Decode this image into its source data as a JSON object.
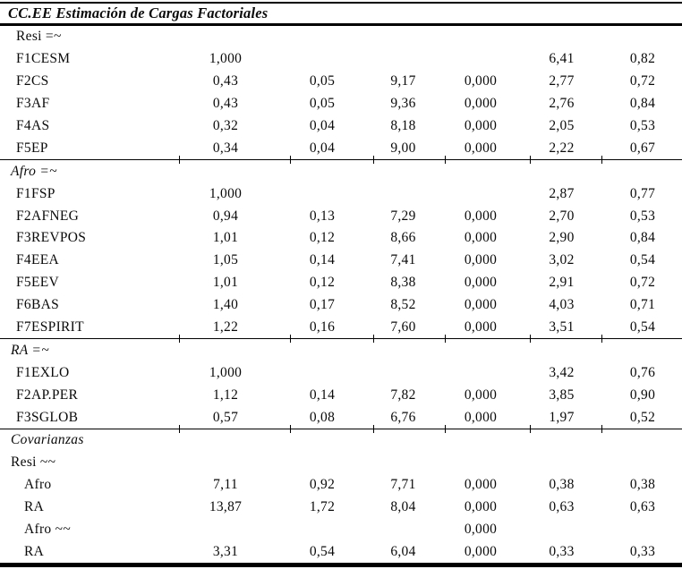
{
  "title": "CC.EE Estimación de Cargas Factoriales",
  "table": {
    "rows": [
      {
        "label": "Resi =~",
        "italic": false,
        "indent": 1,
        "values": [
          "",
          "",
          "",
          "",
          "",
          ""
        ]
      },
      {
        "label": "F1CESM",
        "italic": false,
        "indent": 1,
        "values": [
          "1,000",
          "",
          "",
          "",
          "6,41",
          "0,82"
        ]
      },
      {
        "label": "F2CS",
        "italic": false,
        "indent": 1,
        "values": [
          "0,43",
          "0,05",
          "9,17",
          "0,000",
          "2,77",
          "0,72"
        ]
      },
      {
        "label": "F3AF",
        "italic": false,
        "indent": 1,
        "values": [
          "0,43",
          "0,05",
          "9,36",
          "0,000",
          "2,76",
          "0,84"
        ]
      },
      {
        "label": "F4AS",
        "italic": false,
        "indent": 1,
        "values": [
          "0,32",
          "0,04",
          "8,18",
          "0,000",
          "2,05",
          "0,53"
        ]
      },
      {
        "label": "F5EP",
        "italic": false,
        "indent": 1,
        "values": [
          "0,34",
          "0,04",
          "9,00",
          "0,000",
          "2,22",
          "0,67"
        ],
        "rule_after": true
      },
      {
        "label": "Afro =~",
        "italic": true,
        "indent": 0,
        "values": [
          "",
          "",
          "",
          "",
          "",
          ""
        ]
      },
      {
        "label": "F1FSP",
        "italic": false,
        "indent": 1,
        "values": [
          "1,000",
          "",
          "",
          "",
          "2,87",
          "0,77"
        ]
      },
      {
        "label": "F2AFNEG",
        "italic": false,
        "indent": 1,
        "values": [
          "0,94",
          "0,13",
          "7,29",
          "0,000",
          "2,70",
          "0,53"
        ]
      },
      {
        "label": "F3REVPOS",
        "italic": false,
        "indent": 1,
        "values": [
          "1,01",
          "0,12",
          "8,66",
          "0,000",
          "2,90",
          "0,84"
        ]
      },
      {
        "label": "F4EEA",
        "italic": false,
        "indent": 1,
        "values": [
          "1,05",
          "0,14",
          "7,41",
          "0,000",
          "3,02",
          "0,54"
        ]
      },
      {
        "label": "F5EEV",
        "italic": false,
        "indent": 1,
        "values": [
          "1,01",
          "0,12",
          "8,38",
          "0,000",
          "2,91",
          "0,72"
        ]
      },
      {
        "label": "F6BAS",
        "italic": false,
        "indent": 1,
        "values": [
          "1,40",
          "0,17",
          "8,52",
          "0,000",
          "4,03",
          "0,71"
        ]
      },
      {
        "label": "F7ESPIRIT",
        "italic": false,
        "indent": 1,
        "values": [
          "1,22",
          "0,16",
          "7,60",
          "0,000",
          "3,51",
          "0,54"
        ],
        "rule_after": true
      },
      {
        "label": "RA =~",
        "italic": true,
        "indent": 0,
        "values": [
          "",
          "",
          "",
          "",
          "",
          ""
        ]
      },
      {
        "label": "F1EXLO",
        "italic": false,
        "indent": 1,
        "values": [
          "1,000",
          "",
          "",
          "",
          "3,42",
          "0,76"
        ]
      },
      {
        "label": "F2AP.PER",
        "italic": false,
        "indent": 1,
        "values": [
          "1,12",
          "0,14",
          "7,82",
          "0,000",
          "3,85",
          "0,90"
        ]
      },
      {
        "label": "F3SGLOB",
        "italic": false,
        "indent": 1,
        "values": [
          "0,57",
          "0,08",
          "6,76",
          "0,000",
          "1,97",
          "0,52"
        ],
        "rule_after": true
      },
      {
        "label": "Covarianzas",
        "italic": true,
        "indent": 0,
        "values": [
          "",
          "",
          "",
          "",
          "",
          ""
        ]
      },
      {
        "label": "Resi ~~",
        "italic": false,
        "indent": 0,
        "values": [
          "",
          "",
          "",
          "",
          "",
          ""
        ]
      },
      {
        "label": "Afro",
        "italic": false,
        "indent": 2,
        "values": [
          "7,11",
          "0,92",
          "7,71",
          "0,000",
          "0,38",
          "0,38"
        ]
      },
      {
        "label": "RA",
        "italic": false,
        "indent": 2,
        "values": [
          "13,87",
          "1,72",
          "8,04",
          "0,000",
          "0,63",
          "0,63"
        ]
      },
      {
        "label": "Afro ~~",
        "italic": false,
        "indent": 2,
        "values": [
          "",
          "",
          "",
          "0,000",
          "",
          ""
        ]
      },
      {
        "label": "RA",
        "italic": false,
        "indent": 2,
        "values": [
          "3,31",
          "0,54",
          "6,04",
          "0,000",
          "0,33",
          "0,33"
        ]
      }
    ]
  },
  "colors": {
    "rule": "#000000",
    "text": "#0a0a0a",
    "background": "#ffffff"
  }
}
